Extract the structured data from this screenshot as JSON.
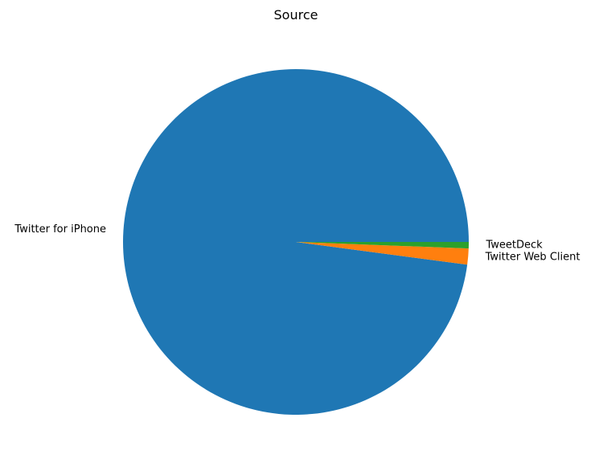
{
  "chart_data": {
    "type": "pie",
    "title": "Source",
    "categories": [
      "Twitter for iPhone",
      "Twitter Web Client",
      "TweetDeck"
    ],
    "values": [
      97.9,
      1.5,
      0.6
    ],
    "colors": [
      "#1f77b4",
      "#ff7f0e",
      "#2ca02c"
    ],
    "start_angle_deg": 0,
    "direction": "counterclockwise",
    "legend": "none"
  }
}
